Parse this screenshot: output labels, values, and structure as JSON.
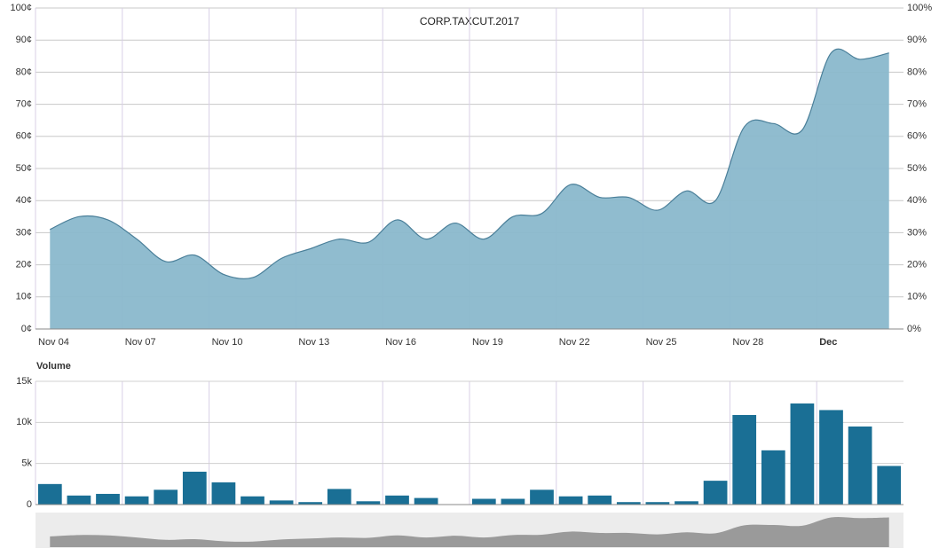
{
  "chart_data": [
    {
      "type": "area",
      "title": "CORP.TAXCUT.2017",
      "categories": [
        "Nov 04",
        null,
        null,
        "Nov 07",
        null,
        null,
        "Nov 10",
        null,
        null,
        "Nov 13",
        null,
        null,
        "Nov 16",
        null,
        null,
        "Nov 19",
        null,
        null,
        "Nov 22",
        null,
        null,
        "Nov 25",
        null,
        null,
        "Nov 28",
        null,
        null,
        "Dec",
        null,
        null
      ],
      "values": [
        31,
        35,
        34,
        28,
        21,
        23,
        17,
        16,
        22,
        25,
        28,
        27,
        34,
        28,
        33,
        28,
        35,
        36,
        45,
        41,
        41,
        37,
        43,
        40,
        63,
        64,
        62,
        86,
        84,
        86
      ],
      "color": "#8ab8cc",
      "line_color": "#4a7f99",
      "ylim": [
        0,
        100
      ],
      "yticks": [
        {
          "value": 0,
          "label": "0¢"
        },
        {
          "value": 10,
          "label": "10¢"
        },
        {
          "value": 20,
          "label": "20¢"
        },
        {
          "value": 30,
          "label": "30¢"
        },
        {
          "value": 40,
          "label": "40¢"
        },
        {
          "value": 50,
          "label": "50¢"
        },
        {
          "value": 60,
          "label": "60¢"
        },
        {
          "value": 70,
          "label": "70¢"
        },
        {
          "value": 80,
          "label": "80¢"
        },
        {
          "value": 90,
          "label": "90¢"
        },
        {
          "value": 100,
          "label": "100¢"
        }
      ],
      "y2lim": [
        0,
        100
      ],
      "y2ticks": [
        {
          "value": 0,
          "label": "0%"
        },
        {
          "value": 10,
          "label": "10%"
        },
        {
          "value": 20,
          "label": "20%"
        },
        {
          "value": 30,
          "label": "30%"
        },
        {
          "value": 40,
          "label": "40%"
        },
        {
          "value": 50,
          "label": "50%"
        },
        {
          "value": 60,
          "label": "60%"
        },
        {
          "value": 70,
          "label": "70%"
        },
        {
          "value": 80,
          "label": "80%"
        },
        {
          "value": 90,
          "label": "90%"
        },
        {
          "value": 100,
          "label": "100%"
        }
      ],
      "grid": true
    },
    {
      "type": "bar",
      "title": "Volume",
      "values": [
        2500,
        1100,
        1300,
        1000,
        1800,
        4000,
        2700,
        1000,
        500,
        300,
        1900,
        400,
        1100,
        800,
        50,
        700,
        700,
        1800,
        1000,
        1100,
        300,
        300,
        400,
        2900,
        10900,
        6600,
        12300,
        11500,
        9500,
        4700
      ],
      "color": "#1a6f95",
      "ylim": [
        0,
        15000
      ],
      "yticks": [
        0,
        {
          "value": 5000,
          "label": "5k"
        },
        {
          "value": 10000,
          "label": "10k"
        },
        {
          "value": 15000,
          "label": "15k"
        }
      ],
      "grid": true
    }
  ]
}
